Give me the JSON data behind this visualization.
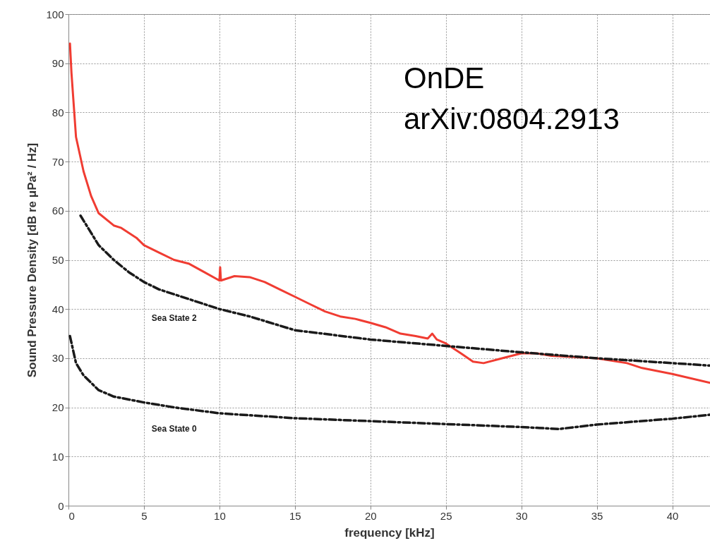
{
  "chart_data": {
    "type": "line",
    "xlabel": "frequency [kHz]",
    "ylabel": "Sound Pressure Density [dB re μPa² / Hz]",
    "xlim": [
      0,
      42.5
    ],
    "xticks": [
      0,
      5,
      10,
      15,
      20,
      25,
      30,
      35,
      40
    ],
    "ylim": [
      0,
      100
    ],
    "yticks": [
      0,
      10,
      20,
      30,
      40,
      50,
      60,
      70,
      80,
      90,
      100
    ],
    "grid": true,
    "annotations": [
      "OnDE",
      "arXiv:0804.2913"
    ],
    "series": [
      {
        "color": "#f03c32",
        "line_style": "solid",
        "x": [
          0.1,
          0.2,
          0.5,
          1,
          1.5,
          2,
          3,
          3.5,
          4.5,
          5,
          6,
          7,
          8,
          9,
          10,
          10.05,
          10.1,
          11,
          12,
          13,
          14,
          15,
          16,
          17,
          18,
          19,
          20,
          21,
          22,
          23,
          23.8,
          24.1,
          24.4,
          25,
          26,
          26.8,
          27.5,
          28.5,
          30,
          31,
          32,
          35,
          37,
          38,
          40,
          42.5
        ],
        "values": [
          94,
          88,
          75,
          68,
          63,
          59.5,
          57,
          56.5,
          54.5,
          53,
          51.5,
          50,
          49.2,
          47.5,
          45.8,
          48.5,
          45.8,
          46.7,
          46.5,
          45.5,
          44,
          42.5,
          41,
          39.5,
          38.5,
          38,
          37.2,
          36.3,
          35,
          34.5,
          34,
          35,
          33.8,
          33,
          31,
          29.3,
          29,
          29.8,
          31,
          31,
          30.5,
          30,
          29,
          28,
          26.8,
          25
        ]
      },
      {
        "name": "Sea State 2",
        "color": "#1a1a1a",
        "line_style": "dashed",
        "x": [
          0.8,
          2,
          3,
          4,
          5,
          6,
          7,
          8,
          10,
          12,
          15,
          20,
          25,
          30,
          35,
          40,
          42.5
        ],
        "values": [
          59,
          53,
          50,
          47.5,
          45.5,
          44,
          43,
          42,
          40,
          38.5,
          35.7,
          33.8,
          32.5,
          31.2,
          30,
          29,
          28.5
        ]
      },
      {
        "name": "Sea State 0",
        "color": "#1a1a1a",
        "line_style": "dashed",
        "x": [
          0.1,
          0.5,
          1,
          2,
          3,
          5,
          7,
          10,
          15,
          20,
          25,
          30,
          32.5,
          35,
          40,
          42.5
        ],
        "values": [
          34.5,
          29,
          26.5,
          23.5,
          22.2,
          21,
          20,
          18.8,
          17.8,
          17.2,
          16.6,
          16,
          15.6,
          16.5,
          17.7,
          18.5
        ]
      }
    ]
  }
}
